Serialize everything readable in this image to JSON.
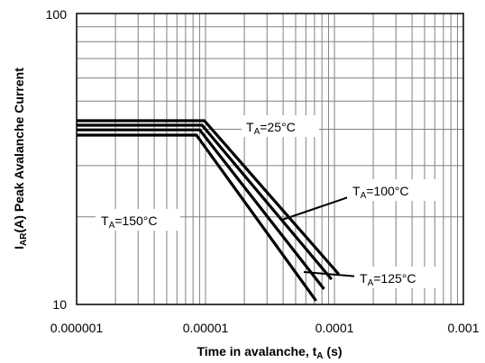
{
  "chart_data": {
    "type": "line",
    "title": "",
    "xlabel": {
      "main": "Time in avalanche, t",
      "sub": "A",
      "unit": " (s)"
    },
    "ylabel": {
      "pre": "I",
      "sub": "AR",
      "post": "(A) Peak Avalanche Current"
    },
    "xscale": "log",
    "yscale": "log",
    "xlim": [
      1e-06,
      0.001
    ],
    "ylim": [
      10,
      100
    ],
    "grid": true,
    "xticks": [
      "0.000001",
      "0.00001",
      "0.0001",
      "0.001"
    ],
    "yticks": [
      "10",
      "100"
    ],
    "series": [
      {
        "x": [
          1e-06,
          9.8e-06,
          0.000108
        ],
        "y": [
          42.8,
          42.8,
          12.7
        ]
      },
      {
        "x": [
          1e-06,
          9.4e-06,
          9.5e-05
        ],
        "y": [
          41.3,
          41.3,
          12.2
        ]
      },
      {
        "x": [
          1e-06,
          9e-06,
          8.3e-05
        ],
        "y": [
          39.8,
          39.8,
          11.3
        ]
      },
      {
        "x": [
          1e-06,
          8.5e-06,
          7.2e-05
        ],
        "y": [
          38.2,
          38.2,
          10.3
        ]
      }
    ],
    "annotations": [
      {
        "pre": "T",
        "sub": "A",
        "post": "=25°C"
      },
      {
        "pre": "T",
        "sub": "A",
        "post": "=100°C"
      },
      {
        "pre": "T",
        "sub": "A",
        "post": "=150°C"
      },
      {
        "pre": "T",
        "sub": "A",
        "post": "=125°C"
      }
    ]
  }
}
